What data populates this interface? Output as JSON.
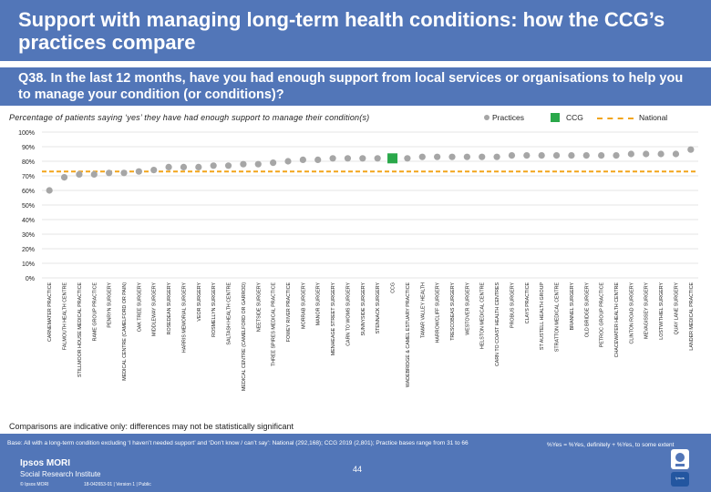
{
  "header": {
    "title": "Support with managing long-term health conditions: how the CCG’s practices compare",
    "question": "Q38. In the last 12 months, have you had enough support from local services or organisations to help you to manage your condition (or conditions)?",
    "subtitle": "Percentage of patients saying ‘yes’ they have had enough support to manage their condition(s)"
  },
  "legend": {
    "practices": "Practices",
    "ccg": "CCG",
    "national": "National"
  },
  "colors": {
    "header_bg": "#5276b8",
    "practice_point": "#a6a6a6",
    "ccg_marker": "#2aa84a",
    "national_line": "#f2a51a",
    "gridline": "#e6e6e6"
  },
  "chart_data": {
    "type": "scatter",
    "title": "Percentage of patients saying ‘yes’ they have had enough support to manage their condition(s)",
    "ylabel": "",
    "xlabel": "",
    "ylim": [
      0,
      100
    ],
    "yticks": [
      0,
      10,
      20,
      30,
      40,
      50,
      60,
      70,
      80,
      90,
      100
    ],
    "ytick_suffix": "%",
    "national_value": 73,
    "ccg_category": "CCG",
    "categories": [
      "CARNEMATER PRACTICE",
      "FALMOUTH HEALTH CENTRE",
      "STILLMOOR HOUSE MEDICAL PRACTICE",
      "RAME GROUP PRACTICE",
      "PENRYN SURGERY",
      "MEDICAL CENTRE (CAMELFORD OR PAIN)",
      "OAK TREE SURGERY",
      "MIDDLEWAY SURGERY",
      "ROSEDEAN SURGERY",
      "HARRIS MEMORIAL SURGERY",
      "VEOR SURGERY",
      "ROSMELLYN SURGERY",
      "SALTASH HEALTH CENTRE",
      "MEDICAL CENTRE (CAMELFORD OR GARROD)",
      "NEETSIDE SURGERY",
      "THREE SPIRES MEDICAL PRACTICE",
      "FOWEY RIVER PRACTICE",
      "MORRAB SURGERY",
      "MANOR SURGERY",
      "MENHEAGE STREET SURGERY",
      "CARN TO WOMS SURGERY",
      "SUNNYSIDE SURGERY",
      "STENNACK SURGERY",
      "CCG",
      "WADEBRIDGE & CAMEL ESTUARY PRACTICE",
      "TAMAR VALLEY HEALTH",
      "HARROWCLIFF SURGERY",
      "TRESCOBEAS SURGERY",
      "WESTOVER SURGERY",
      "HELSTON MEDICAL CENTRE",
      "CARN TO COAST HEALTH CENTRES",
      "PROBUS SURGERY",
      "CLAYS PRACTICE",
      "ST AUSTELL HEALTH GROUP",
      "STRATTON MEDICAL CENTRE",
      "BRANNEL SURGERY",
      "OLD BRIDGE SURGERY",
      "PETROC GROUP PRACTICE",
      "CHACEWATER HEALTH CENTRE",
      "CLINTON ROAD SURGERY",
      "MEVAGISSEY SURGERY",
      "LOSTWITHIEL SURGERY",
      "QUAY LANE SURGERY",
      "LANDER MEDICAL PRACTICE"
    ],
    "values": [
      60,
      69,
      71,
      71,
      72,
      72,
      73,
      74,
      76,
      76,
      76,
      77,
      77,
      78,
      78,
      79,
      80,
      81,
      81,
      82,
      82,
      82,
      82,
      82,
      82,
      83,
      83,
      83,
      83,
      83,
      83,
      84,
      84,
      84,
      84,
      84,
      84,
      84,
      84,
      85,
      85,
      85,
      85,
      88
    ]
  },
  "notes": {
    "comparison": "Comparisons are indicative only: differences may not be statistically significant"
  },
  "footer": {
    "base": "Base: All with a long-term condition excluding ‘I haven’t needed support’ and ‘Don’t know / can’t say’: National (292,168); CCG 2019 (2,801); Practice bases range from 31 to 66",
    "key": "%Yes = %Yes, definitely + %Yes, to some extent",
    "brand": "Ipsos MORI",
    "institute": "Social Research Institute",
    "copyright": "© Ipsos MORI",
    "project": "18-042653-01 | Version 1 | Public",
    "page_number": "44",
    "logo_text": "Ipsos"
  }
}
